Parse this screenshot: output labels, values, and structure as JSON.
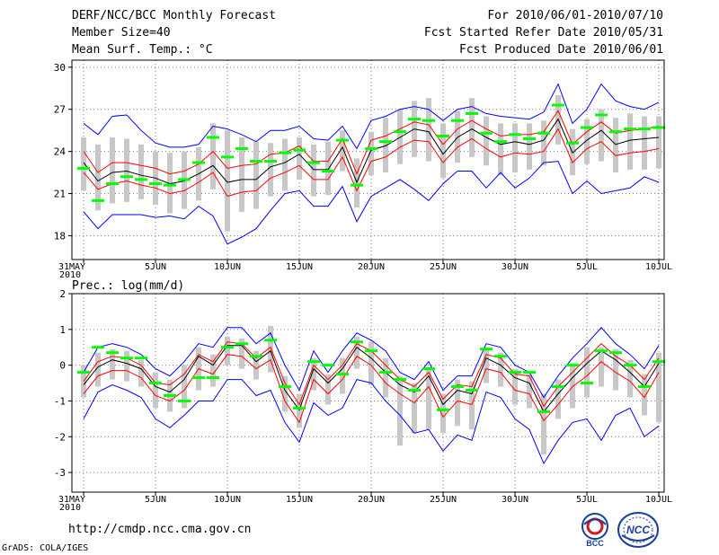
{
  "header": {
    "title": "DERF/NCC/BCC Monthly Forecast",
    "member_size": "Member Size=40",
    "variable": "Mean Surf. Temp.: °C",
    "period": "For 2010/06/01-2010/07/10",
    "started": "Fcst Started Refer Date 2010/05/31",
    "produced": "Fcst Produced Date 2010/06/01"
  },
  "footer": {
    "url": "http://cmdp.ncc.cma.gov.cn",
    "grads": "GrADS: COLA/IGES",
    "logo1_text": "BCC",
    "logo2_text": "NCC"
  },
  "colors": {
    "envelope": "#0000ff",
    "quartile": "#ff0000",
    "median": "#000000",
    "box": "#c8c8c8",
    "observed": "#00ff00"
  },
  "chart_data": [
    {
      "type": "line",
      "title": "Mean Surf. Temp.: °C",
      "ylim": [
        16.3,
        30.5
      ],
      "yticks": [
        18,
        21,
        24,
        27,
        30
      ],
      "x_days": 41,
      "xtick_days": [
        0,
        5,
        10,
        15,
        20,
        25,
        30,
        35,
        40
      ],
      "xtick_labels": [
        "31MAY",
        "5JUN",
        "10JUN",
        "15JUN",
        "20JUN",
        "25JUN",
        "30JUN",
        "5JUL",
        "10JUL"
      ],
      "year_label": "2010",
      "series": [
        {
          "name": "max",
          "values": [
            26.0,
            25.2,
            26.5,
            26.6,
            25.5,
            24.6,
            24.3,
            24.3,
            24.5,
            25.8,
            25.6,
            25.2,
            24.7,
            25.5,
            25.5,
            25.8,
            24.9,
            24.8,
            25.8,
            24.2,
            26.2,
            26.5,
            27.0,
            27.2,
            27.0,
            26.2,
            27.0,
            27.2,
            26.7,
            26.5,
            26.4,
            26.3,
            26.8,
            28.8,
            26.0,
            27.0,
            28.8,
            27.6,
            27.2,
            27.0,
            27.5
          ]
        },
        {
          "name": "q75",
          "values": [
            24.0,
            22.5,
            23.2,
            23.2,
            23.0,
            22.8,
            22.4,
            22.6,
            23.1,
            24.0,
            22.8,
            23.0,
            23.1,
            23.8,
            23.9,
            24.4,
            23.3,
            23.3,
            24.9,
            22.4,
            24.8,
            25.1,
            25.6,
            26.1,
            25.9,
            24.5,
            25.6,
            26.2,
            25.6,
            25.1,
            25.2,
            25.2,
            25.4,
            26.9,
            24.5,
            25.4,
            26.1,
            25.3,
            25.5,
            25.6,
            25.8
          ]
        },
        {
          "name": "median",
          "values": [
            23.2,
            21.9,
            22.5,
            22.6,
            22.3,
            22.1,
            21.7,
            21.9,
            22.4,
            23.0,
            21.8,
            22.0,
            22.0,
            22.9,
            23.2,
            23.8,
            22.7,
            22.7,
            24.3,
            21.8,
            24.1,
            24.4,
            25.0,
            25.6,
            25.4,
            23.8,
            25.0,
            25.6,
            25.0,
            24.5,
            24.7,
            24.5,
            24.8,
            26.3,
            23.9,
            24.8,
            25.5,
            24.5,
            24.8,
            24.9,
            25.0
          ]
        },
        {
          "name": "q25",
          "values": [
            22.5,
            21.3,
            21.7,
            21.9,
            21.6,
            21.4,
            21.0,
            21.2,
            21.8,
            22.5,
            20.8,
            21.1,
            21.2,
            22.1,
            22.5,
            23.0,
            22.0,
            22.0,
            23.6,
            21.2,
            23.3,
            23.6,
            24.3,
            24.8,
            24.7,
            23.2,
            24.3,
            24.9,
            24.2,
            23.6,
            23.9,
            23.8,
            24.0,
            25.6,
            23.2,
            24.2,
            24.7,
            23.7,
            23.9,
            24.0,
            24.2
          ]
        },
        {
          "name": "min",
          "values": [
            19.7,
            18.5,
            19.5,
            19.5,
            19.5,
            19.3,
            19.4,
            19.2,
            20.1,
            19.4,
            17.4,
            17.9,
            18.5,
            19.8,
            21.0,
            21.2,
            20.1,
            20.1,
            21.5,
            19.0,
            20.8,
            21.4,
            22.0,
            21.3,
            20.5,
            21.7,
            22.6,
            22.6,
            21.4,
            22.5,
            21.4,
            22.1,
            23.2,
            23.3,
            21.0,
            21.9,
            21.0,
            21.2,
            21.4,
            22.2,
            21.8
          ]
        },
        {
          "name": "box_hi",
          "values": [
            25.0,
            24.5,
            25.0,
            24.9,
            24.5,
            24.0,
            23.9,
            24.0,
            24.3,
            26.0,
            25.5,
            25.0,
            24.7,
            24.6,
            24.9,
            25.0,
            24.5,
            24.7,
            25.5,
            23.5,
            25.4,
            26.4,
            27.0,
            27.6,
            27.8,
            26.0,
            26.9,
            27.8,
            26.5,
            26.0,
            26.0,
            26.0,
            26.2,
            28.0,
            25.6,
            26.3,
            27.0,
            26.4,
            26.7,
            26.5,
            26.5
          ]
        },
        {
          "name": "box_lo",
          "values": [
            21.2,
            19.8,
            20.3,
            20.4,
            20.6,
            20.2,
            19.6,
            19.9,
            20.5,
            21.3,
            18.3,
            19.7,
            19.9,
            20.8,
            21.2,
            22.0,
            20.8,
            20.9,
            22.6,
            20.0,
            22.3,
            22.5,
            23.1,
            23.6,
            23.3,
            22.1,
            23.2,
            23.6,
            23.0,
            22.3,
            22.5,
            22.7,
            23.0,
            24.5,
            22.3,
            23.1,
            23.3,
            22.5,
            22.7,
            22.7,
            22.8
          ]
        },
        {
          "name": "observed",
          "values": [
            22.8,
            20.5,
            21.7,
            22.2,
            22.0,
            21.7,
            21.6,
            22.0,
            23.2,
            25.0,
            23.6,
            24.2,
            23.3,
            23.3,
            23.9,
            24.1,
            23.2,
            22.6,
            24.8,
            21.6,
            24.2,
            24.7,
            25.4,
            26.3,
            26.2,
            25.1,
            26.2,
            26.7,
            25.3,
            24.7,
            25.2,
            24.9,
            25.3,
            27.3,
            24.6,
            25.7,
            26.6,
            25.4,
            25.6,
            25.6,
            25.7
          ]
        }
      ]
    },
    {
      "type": "line",
      "title": "Prec.: log(mm/d)",
      "ylim": [
        -3.55,
        2.0
      ],
      "yticks": [
        -3,
        -2,
        -1,
        0,
        1,
        2
      ],
      "x_days": 41,
      "xtick_days": [
        0,
        5,
        10,
        15,
        20,
        25,
        30,
        35,
        40
      ],
      "xtick_labels": [
        "31MAY",
        "5JUN",
        "10JUN",
        "15JUN",
        "20JUN",
        "25JUN",
        "30JUN",
        "5JUL",
        "10JUL"
      ],
      "year_label": "2010",
      "series": [
        {
          "name": "max",
          "values": [
            -0.2,
            0.5,
            0.6,
            0.5,
            0.3,
            -0.1,
            -0.3,
            0.1,
            0.6,
            0.5,
            1.05,
            1.05,
            0.6,
            0.9,
            0.0,
            -0.7,
            0.4,
            -0.2,
            0.4,
            0.9,
            0.7,
            0.4,
            -0.2,
            -0.4,
            0.1,
            -0.7,
            -0.3,
            -0.3,
            0.6,
            0.5,
            0.0,
            -0.2,
            -0.9,
            -0.3,
            0.2,
            0.6,
            1.05,
            0.6,
            0.3,
            -0.1,
            0.55
          ]
        },
        {
          "name": "q75",
          "values": [
            -0.45,
            0.1,
            0.25,
            0.2,
            0.0,
            -0.5,
            -0.55,
            -0.25,
            0.3,
            0.1,
            0.65,
            0.6,
            0.2,
            0.5,
            -0.5,
            -1.1,
            0.0,
            -0.4,
            0.0,
            0.6,
            0.4,
            0.0,
            -0.4,
            -0.6,
            -0.2,
            -0.95,
            -0.55,
            -0.6,
            0.3,
            0.2,
            -0.25,
            -0.3,
            -1.15,
            -0.6,
            -0.2,
            0.2,
            0.6,
            0.25,
            0.0,
            -0.4,
            0.2
          ]
        },
        {
          "name": "median",
          "values": [
            -0.55,
            -0.05,
            0.15,
            0.05,
            -0.1,
            -0.6,
            -0.75,
            -0.4,
            0.25,
            0.0,
            0.55,
            0.55,
            0.1,
            0.4,
            -0.7,
            -1.25,
            -0.1,
            -0.5,
            -0.1,
            0.5,
            0.2,
            -0.2,
            -0.55,
            -0.75,
            -0.3,
            -1.1,
            -0.7,
            -0.8,
            0.2,
            0.0,
            -0.35,
            -0.5,
            -1.3,
            -0.8,
            -0.35,
            0.05,
            0.4,
            0.15,
            -0.2,
            -0.6,
            0.05
          ]
        },
        {
          "name": "q25",
          "values": [
            -0.8,
            -0.3,
            -0.15,
            -0.15,
            -0.35,
            -0.85,
            -1.0,
            -0.7,
            -0.1,
            -0.25,
            0.3,
            0.25,
            -0.1,
            0.15,
            -1.0,
            -1.6,
            -0.4,
            -0.8,
            -0.4,
            0.25,
            0.0,
            -0.5,
            -0.8,
            -1.05,
            -0.6,
            -1.45,
            -1.0,
            -1.1,
            -0.1,
            -0.2,
            -0.7,
            -0.8,
            -1.55,
            -1.1,
            -0.6,
            -0.3,
            0.1,
            -0.2,
            -0.45,
            -0.9,
            -0.2
          ]
        },
        {
          "name": "min",
          "values": [
            -1.5,
            -0.75,
            -0.55,
            -0.7,
            -0.9,
            -1.5,
            -1.75,
            -1.4,
            -1.0,
            -1.0,
            -0.4,
            -0.4,
            -0.85,
            -0.7,
            -1.6,
            -2.15,
            -1.05,
            -1.4,
            -1.2,
            -0.4,
            -0.5,
            -1.0,
            -1.4,
            -1.9,
            -1.8,
            -2.4,
            -1.95,
            -2.1,
            -0.75,
            -0.9,
            -1.5,
            -1.8,
            -2.75,
            -2.1,
            -1.6,
            -1.5,
            -2.1,
            -1.4,
            -1.2,
            -2.0,
            -1.7
          ]
        },
        {
          "name": "box_hi",
          "values": [
            0.0,
            0.35,
            0.45,
            0.4,
            0.15,
            -0.2,
            -0.4,
            0.0,
            0.5,
            0.3,
            0.8,
            0.75,
            0.4,
            1.1,
            -0.3,
            -0.8,
            0.2,
            -0.25,
            0.2,
            0.8,
            0.65,
            0.2,
            -0.3,
            -0.5,
            -0.05,
            -0.8,
            -0.4,
            -0.45,
            0.5,
            0.35,
            -0.1,
            -0.25,
            -0.8,
            -0.4,
            0.0,
            0.5,
            0.5,
            0.45,
            0.15,
            -0.25,
            0.35
          ]
        },
        {
          "name": "box_lo",
          "values": [
            -0.9,
            -0.6,
            -0.4,
            -0.45,
            -0.6,
            -1.2,
            -1.3,
            -1.2,
            -0.7,
            -0.6,
            0.0,
            -0.1,
            -0.4,
            -0.2,
            -1.3,
            -1.75,
            -0.7,
            -1.1,
            -0.8,
            -0.1,
            -0.55,
            -0.9,
            -2.25,
            -1.9,
            -1.8,
            -1.9,
            -1.7,
            -1.8,
            -0.5,
            -0.6,
            -1.1,
            -1.2,
            -2.5,
            -1.5,
            -1.2,
            -0.9,
            -0.6,
            -0.7,
            -0.9,
            -1.4,
            -1.6
          ]
        },
        {
          "name": "observed",
          "values": [
            -0.2,
            0.5,
            0.35,
            0.2,
            0.2,
            -0.5,
            -0.85,
            -1.0,
            -0.35,
            -0.35,
            0.5,
            0.6,
            0.25,
            0.7,
            -0.6,
            -1.2,
            0.1,
            0.0,
            -0.25,
            0.65,
            0.4,
            -0.2,
            -0.4,
            -0.7,
            -0.1,
            -1.25,
            -0.6,
            -0.7,
            0.45,
            0.25,
            -0.2,
            -0.2,
            -1.3,
            -0.6,
            0.0,
            -0.5,
            0.4,
            0.35,
            0.0,
            -0.6,
            0.1
          ]
        }
      ]
    }
  ]
}
